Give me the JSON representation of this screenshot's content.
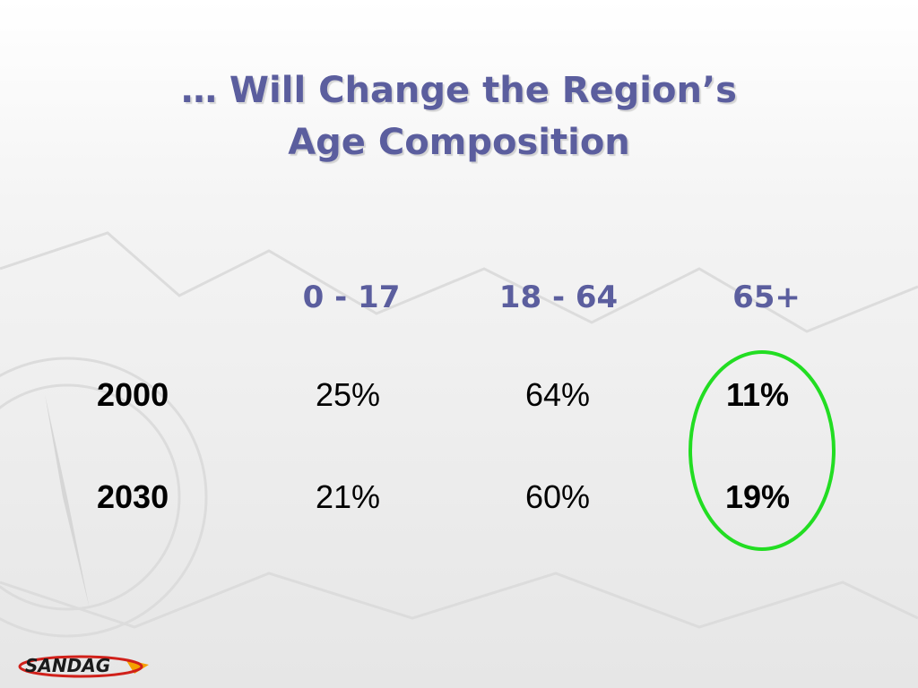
{
  "title": [
    "… Will Change the Region’s",
    "Age Composition"
  ],
  "table": {
    "header": [
      "0 - 17",
      "18 - 64",
      "65+"
    ],
    "rows": [
      [
        "2000",
        "25%",
        "64%",
        "11%"
      ],
      [
        "2030",
        "21%",
        "60%",
        "19%"
      ]
    ]
  },
  "logo": "SANDAG"
}
